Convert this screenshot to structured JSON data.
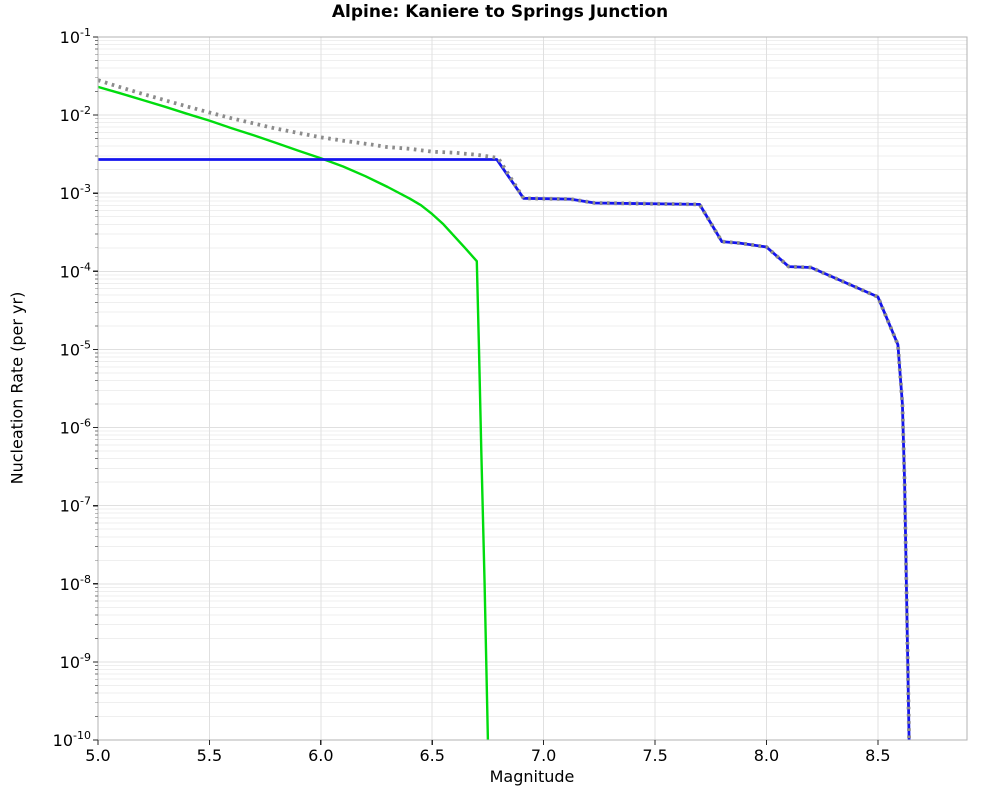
{
  "chart_data": {
    "type": "line",
    "title": "Alpine: Kaniere to Springs Junction",
    "xlabel": "Magnitude",
    "ylabel": "Nucleation Rate (per yr)",
    "xlim": [
      5.0,
      8.9
    ],
    "ylim_exp": [
      -1,
      -10
    ],
    "x_tick_labels": [
      "5.0",
      "5.5",
      "6.0",
      "6.5",
      "7.0",
      "7.5",
      "8.0",
      "8.5"
    ],
    "x_tick_values": [
      5.0,
      5.5,
      6.0,
      6.5,
      7.0,
      7.5,
      8.0,
      8.5
    ],
    "y_tick_base": "10",
    "y_tick_exponents": [
      -1,
      -2,
      -3,
      -4,
      -5,
      -6,
      -7,
      -8,
      -9,
      -10
    ],
    "grid": "major and minor log gridlines on, light gray",
    "legend": "none",
    "series": [
      {
        "name": "green-line",
        "color": "#00dc0e",
        "style": "solid",
        "width": 2.4,
        "points": [
          [
            5.0,
            0.023
          ],
          [
            5.1,
            0.019
          ],
          [
            5.2,
            0.0156
          ],
          [
            5.3,
            0.0128
          ],
          [
            5.4,
            0.0104
          ],
          [
            5.5,
            0.0085
          ],
          [
            5.6,
            0.0068
          ],
          [
            5.7,
            0.0055
          ],
          [
            5.8,
            0.0044
          ],
          [
            5.9,
            0.0035
          ],
          [
            6.0,
            0.0028
          ],
          [
            6.1,
            0.0022
          ],
          [
            6.2,
            0.00165
          ],
          [
            6.3,
            0.0012
          ],
          [
            6.4,
            0.00085
          ],
          [
            6.45,
            0.0007
          ],
          [
            6.5,
            0.00054
          ],
          [
            6.55,
            0.0004
          ],
          [
            6.6,
            0.00028
          ],
          [
            6.65,
            0.000195
          ],
          [
            6.7,
            0.000135
          ],
          [
            6.71,
            1e-05
          ],
          [
            6.72,
            5e-07
          ],
          [
            6.735,
            1e-08
          ],
          [
            6.75,
            1e-10
          ]
        ]
      },
      {
        "name": "blue-line",
        "color": "#1414ee",
        "style": "solid",
        "width": 2.8,
        "points": [
          [
            5.0,
            0.0027
          ],
          [
            6.79,
            0.0027
          ],
          [
            6.91,
            0.00086
          ],
          [
            7.12,
            0.00084
          ],
          [
            7.23,
            0.00075
          ],
          [
            7.7,
            0.00072
          ],
          [
            7.8,
            0.00024
          ],
          [
            7.88,
            0.00023
          ],
          [
            8.0,
            0.000205
          ],
          [
            8.1,
            0.000115
          ],
          [
            8.2,
            0.000112
          ],
          [
            8.5,
            4.7e-05
          ],
          [
            8.59,
            1.15e-05
          ],
          [
            8.61,
            2e-06
          ],
          [
            8.62,
            2e-07
          ],
          [
            8.63,
            5e-09
          ],
          [
            8.64,
            1e-10
          ]
        ]
      },
      {
        "name": "gray-dotted-line",
        "color": "#8c8c8c",
        "style": "dotted",
        "width": 3.8,
        "points": [
          [
            5.0,
            0.028
          ],
          [
            5.1,
            0.0228
          ],
          [
            5.2,
            0.0187
          ],
          [
            5.3,
            0.0155
          ],
          [
            5.4,
            0.0129
          ],
          [
            5.5,
            0.0108
          ],
          [
            5.6,
            0.0091
          ],
          [
            5.7,
            0.0078
          ],
          [
            5.8,
            0.0067
          ],
          [
            5.9,
            0.0059
          ],
          [
            6.0,
            0.0052
          ],
          [
            6.1,
            0.0047
          ],
          [
            6.2,
            0.0043
          ],
          [
            6.3,
            0.0039
          ],
          [
            6.4,
            0.0037
          ],
          [
            6.5,
            0.0034
          ],
          [
            6.6,
            0.0033
          ],
          [
            6.7,
            0.0031
          ],
          [
            6.79,
            0.00285
          ],
          [
            6.8,
            0.0027
          ],
          [
            6.91,
            0.00086
          ],
          [
            7.12,
            0.00084
          ],
          [
            7.23,
            0.00075
          ],
          [
            7.7,
            0.00072
          ],
          [
            7.8,
            0.00024
          ],
          [
            7.88,
            0.00023
          ],
          [
            8.0,
            0.000205
          ],
          [
            8.1,
            0.000115
          ],
          [
            8.2,
            0.000112
          ],
          [
            8.5,
            4.7e-05
          ],
          [
            8.59,
            1.15e-05
          ],
          [
            8.61,
            2e-06
          ],
          [
            8.62,
            2e-07
          ],
          [
            8.63,
            5e-09
          ],
          [
            8.64,
            1e-10
          ]
        ]
      }
    ]
  },
  "colors": {
    "background": "#ffffff",
    "blue_line": "#1414ee",
    "green_line": "#00dc0e",
    "dotted_line": "#8c8c8c",
    "grid_major": "#e0e0e0",
    "grid_minor": "#efefef",
    "spine": "#b3b3b3",
    "tick": "#262626",
    "text": "#000000"
  }
}
